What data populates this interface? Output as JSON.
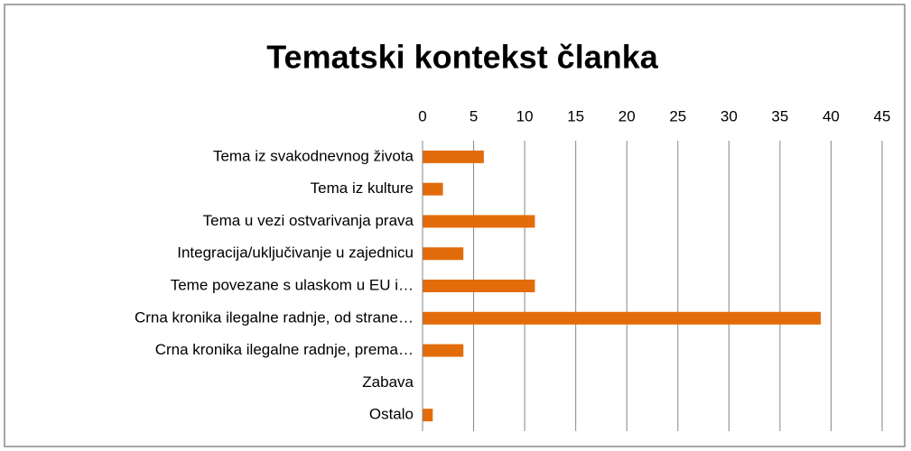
{
  "chart_data": {
    "type": "bar",
    "orientation": "horizontal",
    "title": "Tematski kontekst članka",
    "categories": [
      "Tema iz svakodnevnog života",
      "Tema iz kulture",
      "Tema u vezi ostvarivanja prava",
      "Integracija/uključivanje u zajednicu",
      "Teme povezane s ulaskom u EU i…",
      "Crna kronika ilegalne radnje, od strane…",
      "Crna kronika ilegalne radnje, prema…",
      "Zabava",
      "Ostalo"
    ],
    "values": [
      6,
      2,
      11,
      4,
      11,
      39,
      4,
      0,
      1
    ],
    "color": "#e36c0a",
    "xlim": [
      0,
      45
    ],
    "xticks": [
      0,
      5,
      10,
      15,
      20,
      25,
      30,
      35,
      40,
      45
    ],
    "grid": true
  }
}
